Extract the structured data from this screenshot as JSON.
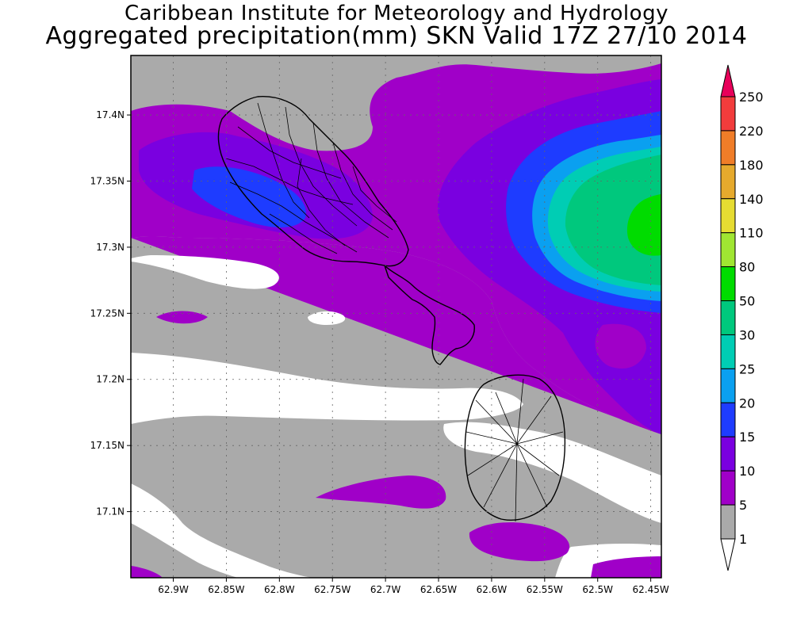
{
  "header": {
    "title": "Caribbean Institute for Meteorology and Hydrology",
    "subtitle": "Aggregated precipitation(mm) SKN Valid 17Z 27/10 2014"
  },
  "map": {
    "region": "SKN",
    "lon_range": [
      -62.94,
      -62.44
    ],
    "lat_range": [
      17.05,
      17.445
    ],
    "x_ticks": [
      {
        "lon": -62.9,
        "label": "62.9W"
      },
      {
        "lon": -62.85,
        "label": "62.85W"
      },
      {
        "lon": -62.8,
        "label": "62.8W"
      },
      {
        "lon": -62.75,
        "label": "62.75W"
      },
      {
        "lon": -62.7,
        "label": "62.7W"
      },
      {
        "lon": -62.65,
        "label": "62.65W"
      },
      {
        "lon": -62.6,
        "label": "62.6W"
      },
      {
        "lon": -62.55,
        "label": "62.55W"
      },
      {
        "lon": -62.5,
        "label": "62.5W"
      },
      {
        "lon": -62.45,
        "label": "62.45W"
      }
    ],
    "y_ticks": [
      {
        "lat": 17.4,
        "label": "17.4N"
      },
      {
        "lat": 17.35,
        "label": "17.35N"
      },
      {
        "lat": 17.3,
        "label": "17.3N"
      },
      {
        "lat": 17.25,
        "label": "17.25N"
      },
      {
        "lat": 17.2,
        "label": "17.2N"
      },
      {
        "lat": 17.15,
        "label": "17.15N"
      },
      {
        "lat": 17.1,
        "label": "17.1N"
      }
    ],
    "grid": true
  },
  "legend": {
    "labels": [
      "250",
      "220",
      "180",
      "140",
      "110",
      "80",
      "50",
      "30",
      "25",
      "20",
      "15",
      "10",
      "5",
      "1"
    ],
    "colors": [
      "#e8005a",
      "#f23c3c",
      "#f07d28",
      "#e6aa2d",
      "#e6dc32",
      "#a0e632",
      "#00dc00",
      "#00c87d",
      "#00cdb4",
      "#0aa0f0",
      "#1e3cff",
      "#7a00e0",
      "#a000c8",
      "#aaaaaa",
      "#ffffff"
    ]
  },
  "colors": {
    "no_rain": "#ffffff",
    "band_1_5": "#aaaaaa",
    "band_5_10": "#a000c8",
    "band_10_15": "#7a00e0",
    "band_15_20": "#1e3cff",
    "band_20_25": "#0aa0f0",
    "band_25_30": "#00cdb4",
    "band_30_50": "#00c87d",
    "band_50_80": "#00dc00"
  }
}
